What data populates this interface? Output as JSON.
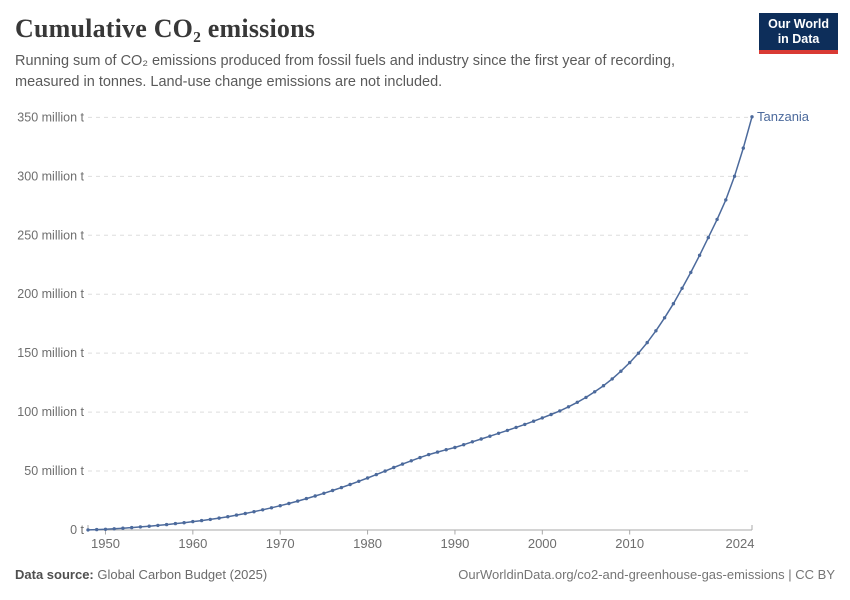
{
  "header": {
    "title": "Cumulative CO₂ emissions",
    "subtitle": "Running sum of CO₂ emissions produced from fossil fuels and industry since the first year of recording, measured in tonnes. Land-use change emissions are not included.",
    "logo": {
      "line1": "Our World",
      "line2": "in Data"
    }
  },
  "footer": {
    "source_label": "Data source:",
    "source_value": " Global Carbon Budget (2025)",
    "credit": "OurWorldinData.org/co2-and-greenhouse-gas-emissions | CC BY"
  },
  "colors": {
    "line": "#4C6A9C",
    "gridline": "#dddddd",
    "axis": "#a8a8a8",
    "tick_label": "#6e6e6e",
    "logo_bg": "#0d2e5a",
    "logo_red": "#d93a34"
  },
  "chart_data": {
    "type": "line",
    "title": "Cumulative CO₂ emissions",
    "unit": "million tonnes",
    "xlabel": "",
    "ylabel": "",
    "xlim": [
      1948,
      2024
    ],
    "ylim": [
      0,
      350
    ],
    "grid": "horizontal-dashed",
    "legend_position": "end-of-line-label",
    "x_ticks": [
      1950,
      1960,
      1970,
      1980,
      1990,
      2000,
      2010,
      2024
    ],
    "y_ticks": [
      {
        "value": 0,
        "label": "0 t"
      },
      {
        "value": 50,
        "label": "50 million t"
      },
      {
        "value": 100,
        "label": "100 million t"
      },
      {
        "value": 150,
        "label": "150 million t"
      },
      {
        "value": 200,
        "label": "200 million t"
      },
      {
        "value": 250,
        "label": "250 million t"
      },
      {
        "value": 300,
        "label": "300 million t"
      },
      {
        "value": 350,
        "label": "350 million t"
      }
    ],
    "series": [
      {
        "name": "Tanzania",
        "color": "#4C6A9C",
        "x": [
          1948,
          1949,
          1950,
          1951,
          1952,
          1953,
          1954,
          1955,
          1956,
          1957,
          1958,
          1959,
          1960,
          1961,
          1962,
          1963,
          1964,
          1965,
          1966,
          1967,
          1968,
          1969,
          1970,
          1971,
          1972,
          1973,
          1974,
          1975,
          1976,
          1977,
          1978,
          1979,
          1980,
          1981,
          1982,
          1983,
          1984,
          1985,
          1986,
          1987,
          1988,
          1989,
          1990,
          1991,
          1992,
          1993,
          1994,
          1995,
          1996,
          1997,
          1998,
          1999,
          2000,
          2001,
          2002,
          2003,
          2004,
          2005,
          2006,
          2007,
          2008,
          2009,
          2010,
          2011,
          2012,
          2013,
          2014,
          2015,
          2016,
          2017,
          2018,
          2019,
          2020,
          2021,
          2022,
          2023,
          2024
        ],
        "values": [
          0.1,
          0.3,
          0.6,
          1.0,
          1.5,
          2.0,
          2.6,
          3.2,
          3.9,
          4.6,
          5.4,
          6.2,
          7.1,
          8.0,
          9.0,
          10.1,
          11.3,
          12.6,
          14.0,
          15.5,
          17.1,
          18.8,
          20.6,
          22.5,
          24.5,
          26.6,
          28.8,
          31.1,
          33.5,
          36.0,
          38.6,
          41.3,
          44.1,
          47.0,
          50.0,
          53.0,
          55.9,
          58.7,
          61.4,
          64.0,
          66.1,
          68.1,
          70.0,
          72.4,
          74.8,
          77.2,
          79.6,
          82.0,
          84.5,
          87.0,
          89.6,
          92.3,
          95.1,
          98.0,
          101.0,
          104.5,
          108.3,
          112.5,
          117.2,
          122.4,
          128.2,
          134.7,
          142.0,
          150.0,
          159.0,
          169.0,
          180.0,
          192.0,
          205.0,
          218.5,
          233.0,
          248.0,
          263.5,
          280.0,
          300.0,
          324.0,
          350.5
        ]
      }
    ]
  }
}
